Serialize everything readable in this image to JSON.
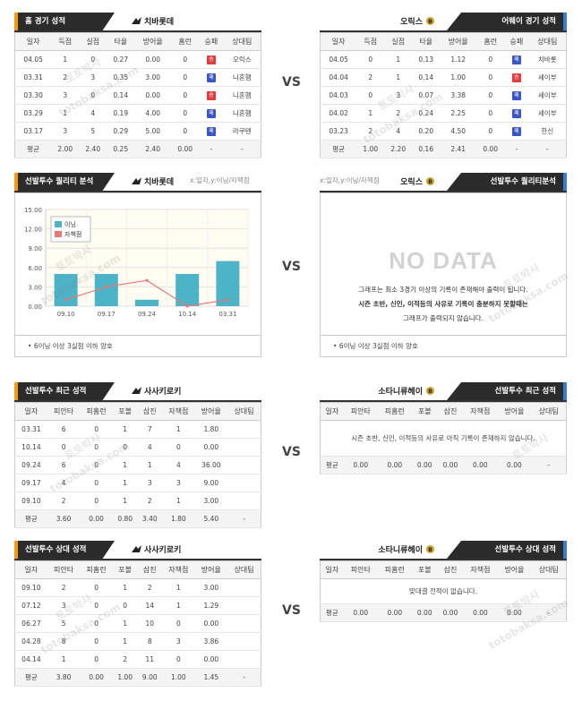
{
  "vs_label": "VS",
  "sec1": {
    "left": {
      "tab": "홈 경기 성적",
      "team": "치바롯데",
      "headers": [
        "일자",
        "득점",
        "실점",
        "타율",
        "방어율",
        "홈런",
        "승패",
        "상대팀"
      ],
      "rows": [
        [
          "04.05",
          "1",
          "0",
          "0.27",
          "0.00",
          "0",
          "승",
          "오릭스"
        ],
        [
          "03.31",
          "2",
          "3",
          "0.35",
          "3.00",
          "0",
          "패",
          "니혼햄"
        ],
        [
          "03.30",
          "3",
          "0",
          "0.14",
          "0.00",
          "0",
          "승",
          "니혼햄"
        ],
        [
          "03.29",
          "1",
          "4",
          "0.19",
          "4.00",
          "0",
          "패",
          "니혼햄"
        ],
        [
          "03.17",
          "3",
          "5",
          "0.29",
          "5.00",
          "0",
          "패",
          "라쿠텐"
        ]
      ],
      "avg": [
        "평균",
        "2.00",
        "2.40",
        "0.25",
        "2.40",
        "0.00",
        "-",
        "-"
      ]
    },
    "right": {
      "tab": "어웨이 경기 성적",
      "team": "오릭스",
      "headers": [
        "일자",
        "득점",
        "실점",
        "타율",
        "방어율",
        "홈런",
        "승패",
        "상대팀"
      ],
      "rows": [
        [
          "04.05",
          "0",
          "1",
          "0.13",
          "1.12",
          "0",
          "패",
          "치바롯"
        ],
        [
          "04.04",
          "2",
          "1",
          "0.14",
          "1.00",
          "0",
          "승",
          "세이부"
        ],
        [
          "04.03",
          "0",
          "3",
          "0.07",
          "3.38",
          "0",
          "패",
          "세이부"
        ],
        [
          "04.02",
          "1",
          "2",
          "0.24",
          "2.25",
          "0",
          "패",
          "세이부"
        ],
        [
          "03.23",
          "2",
          "4",
          "0.20",
          "4.50",
          "0",
          "패",
          "한신"
        ]
      ],
      "avg": [
        "평균",
        "1.00",
        "2.20",
        "0.16",
        "2.41",
        "0.00",
        "-",
        "-"
      ]
    }
  },
  "sec2": {
    "left": {
      "tab": "선발투수 퀄리티 분석",
      "team": "치바롯데",
      "axis_note": "x:일자,y:이닝/자책점",
      "footnote": "6이닝 이상 3실점 이하 양호"
    },
    "right": {
      "tab": "선발투수 퀄리티분석",
      "team": "오릭스",
      "axis_note": "x:일자,y:이닝/자책점",
      "nodata": "NO DATA",
      "msg1": "그래프는 최소 3경기 이상의 기록이 존재해야 출력이 됩니다.",
      "msg2": "시즌 초반, 신인, 이적등의 사유로 기록이 충분하지 못할때는",
      "msg3": "그래프가 출력되지 않습니다.",
      "footnote": "6이닝 이상 3실점 이하 양호"
    }
  },
  "chart_data": {
    "type": "bar",
    "categories": [
      "09.10",
      "09.17",
      "09.24",
      "10.14",
      "03.31"
    ],
    "ylim": [
      0,
      15
    ],
    "yticks": [
      "0.00",
      "3.00",
      "6.00",
      "9.00",
      "12.00",
      "15.00"
    ],
    "series": [
      {
        "name": "이닝",
        "type": "bar",
        "color": "#4db3c7",
        "values": [
          5,
          5,
          1,
          5,
          7
        ]
      },
      {
        "name": "자책점",
        "type": "line",
        "color": "#e87878",
        "values": [
          1,
          3,
          4,
          0,
          1
        ]
      }
    ],
    "legend_position": "top-left",
    "grid": true
  },
  "sec3": {
    "left": {
      "tab": "선발투수 최근 성적",
      "team": "사사키로키",
      "headers": [
        "일자",
        "피안타",
        "피홈런",
        "포볼",
        "삼진",
        "자책점",
        "방어율",
        "상대팀"
      ],
      "rows": [
        [
          "03.31",
          "6",
          "0",
          "1",
          "7",
          "1",
          "1.80",
          ""
        ],
        [
          "10.14",
          "0",
          "0",
          "0",
          "4",
          "0",
          "0.00",
          ""
        ],
        [
          "09.24",
          "6",
          "0",
          "1",
          "1",
          "4",
          "36.00",
          ""
        ],
        [
          "09.17",
          "4",
          "0",
          "1",
          "3",
          "3",
          "9.00",
          ""
        ],
        [
          "09.10",
          "2",
          "0",
          "1",
          "2",
          "1",
          "3.00",
          ""
        ]
      ],
      "avg": [
        "평균",
        "3.60",
        "0.00",
        "0.80",
        "3.40",
        "1.80",
        "5.40",
        "-"
      ]
    },
    "right": {
      "tab": "선발투수 최근 성적",
      "team": "소타니류헤이",
      "headers": [
        "일자",
        "피안타",
        "피홈런",
        "포볼",
        "삼진",
        "자책점",
        "방어율",
        "상대팀"
      ],
      "msg": "시즌 초반, 신인, 이적등의 사유로 아직 기록이 존재하지 않습니다.",
      "avg": [
        "평균",
        "0.00",
        "0.00",
        "0.00",
        "0.00",
        "0.00",
        "0.00",
        "-"
      ]
    }
  },
  "sec4": {
    "left": {
      "tab": "선발투수 상대 성적",
      "team": "사사키로키",
      "headers": [
        "일자",
        "피안타",
        "피홈런",
        "포볼",
        "삼진",
        "자책점",
        "방어율",
        "상대팀"
      ],
      "rows": [
        [
          "09.10",
          "2",
          "0",
          "1",
          "2",
          "1",
          "3.00",
          ""
        ],
        [
          "07.12",
          "3",
          "0",
          "0",
          "14",
          "1",
          "1.29",
          ""
        ],
        [
          "06.27",
          "5",
          "0",
          "1",
          "10",
          "0",
          "0.00",
          ""
        ],
        [
          "04.28",
          "8",
          "0",
          "1",
          "8",
          "3",
          "3.86",
          ""
        ],
        [
          "04.14",
          "1",
          "0",
          "2",
          "11",
          "0",
          "0.00",
          ""
        ]
      ],
      "avg": [
        "평균",
        "3.80",
        "0.00",
        "1.00",
        "9.00",
        "1.00",
        "1.45",
        "-"
      ]
    },
    "right": {
      "tab": "선발투수 상대 성적",
      "team": "소타니류헤이",
      "headers": [
        "일자",
        "피안타",
        "피홈런",
        "포볼",
        "삼진",
        "자책점",
        "방어율",
        "상대팀"
      ],
      "msg": "맞대결 전적이 없습니다.",
      "avg": [
        "평균",
        "0.00",
        "0.00",
        "0.00",
        "0.00",
        "0.00",
        "0.00",
        "-"
      ]
    }
  },
  "watermarks": [
    "토토박사",
    "totobaksa.com"
  ]
}
